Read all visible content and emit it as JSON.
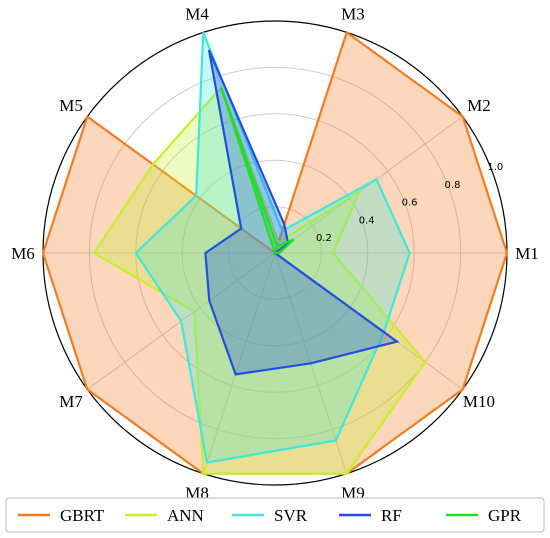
{
  "chart_data": {
    "type": "radar",
    "categories": [
      "M1",
      "M2",
      "M3",
      "M4",
      "M5",
      "M6",
      "M7",
      "M8",
      "M9",
      "M10"
    ],
    "rlim": [
      0,
      1.0
    ],
    "rticks": [
      0.2,
      0.4,
      0.6,
      0.8,
      1.0
    ],
    "rtick_labels": [
      "0.2",
      "0.4",
      "0.6",
      "0.8",
      "1.0"
    ],
    "grid": true,
    "legend_position": "bottom",
    "series": [
      {
        "name": "GBRT",
        "color": "#f47b20",
        "values": [
          1.0,
          1.0,
          1.0,
          0.0,
          1.0,
          1.0,
          1.0,
          1.0,
          1.0,
          1.0
        ]
      },
      {
        "name": "ANN",
        "color": "#c8f02a",
        "values": [
          0.25,
          0.45,
          0.05,
          0.75,
          0.65,
          0.78,
          0.43,
          1.0,
          1.0,
          0.8
        ]
      },
      {
        "name": "SVR",
        "color": "#3fe8d8",
        "values": [
          0.58,
          0.54,
          0.1,
          1.0,
          0.42,
          0.6,
          0.5,
          0.95,
          0.85,
          0.58
        ]
      },
      {
        "name": "RF",
        "color": "#1f4fe0",
        "values": [
          0.0,
          0.07,
          0.13,
          0.92,
          0.18,
          0.3,
          0.35,
          0.55,
          0.5,
          0.65
        ]
      },
      {
        "name": "GPR",
        "color": "#22dd22",
        "values": [
          0.02,
          0.1,
          0.03,
          0.75,
          0.0,
          0.0,
          0.0,
          0.0,
          0.0,
          0.0
        ]
      }
    ]
  }
}
